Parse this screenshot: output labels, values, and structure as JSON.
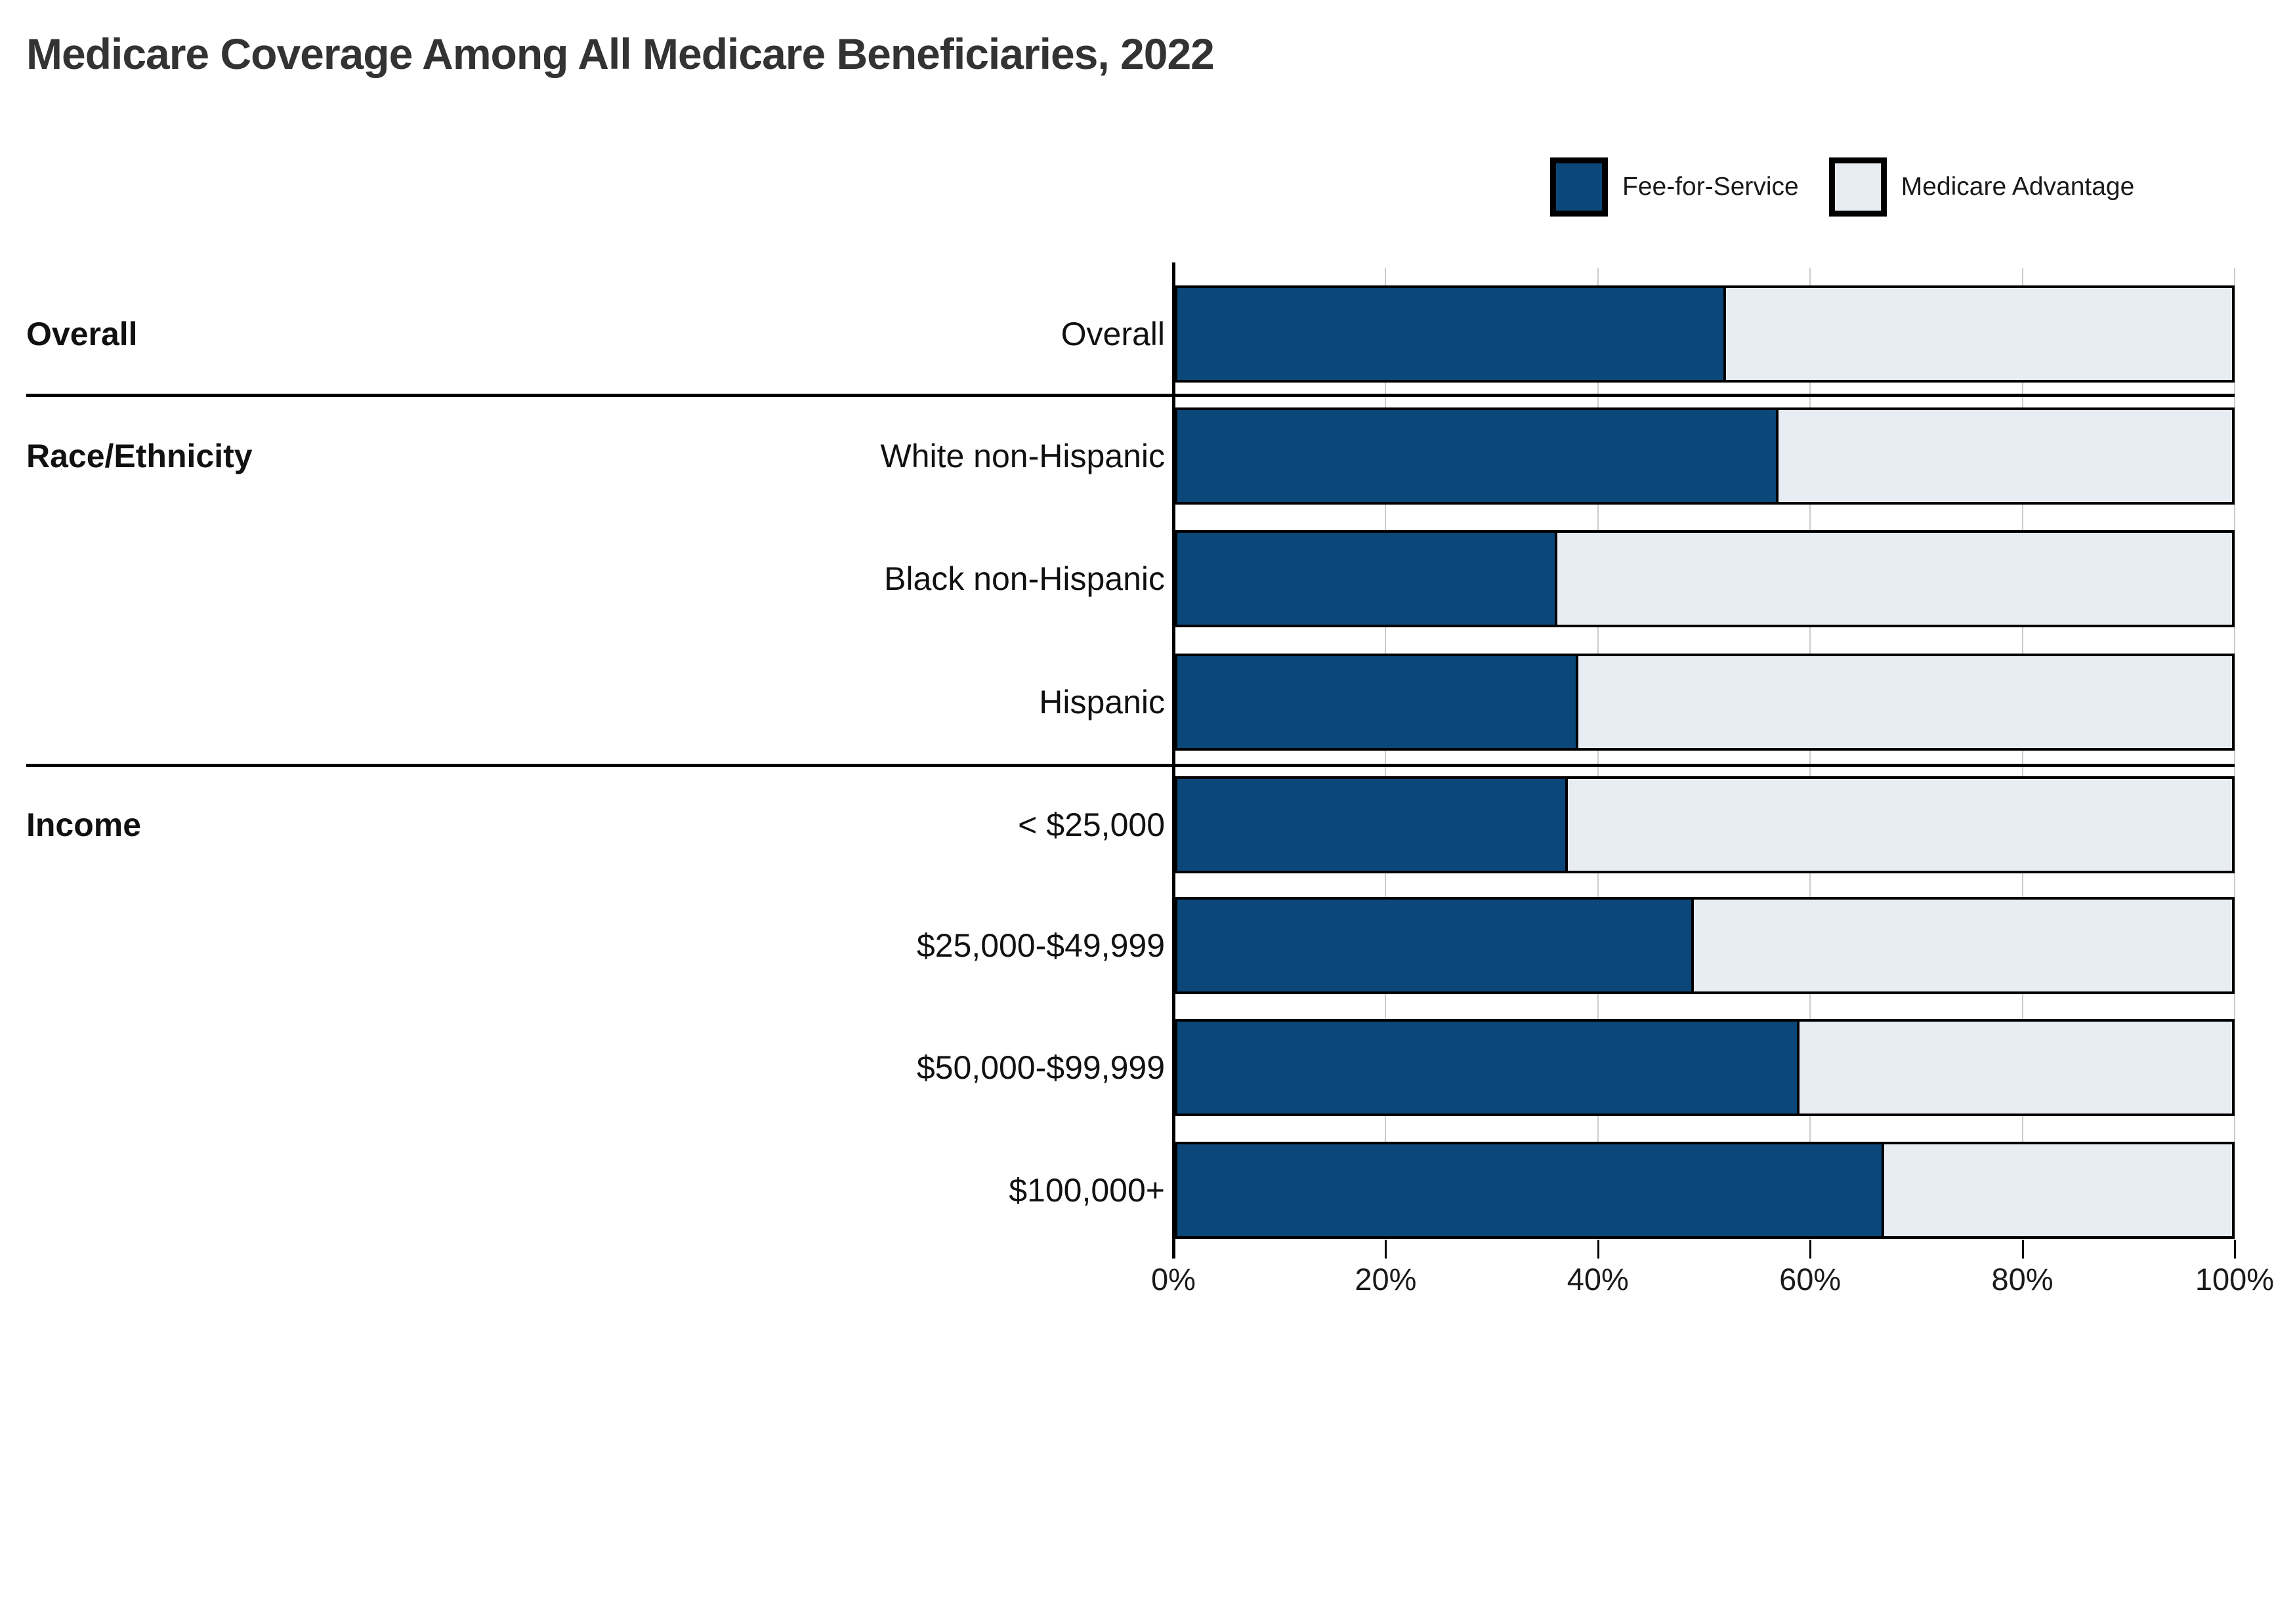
{
  "title": "Medicare Coverage Among All Medicare Beneficiaries, 2022",
  "legend": [
    {
      "label": "Fee-for-Service",
      "color": "#0b4778"
    },
    {
      "label": "Medicare Advantage",
      "color": "#e8ecf3"
    }
  ],
  "colors": {
    "fee_for_service": "#0b4778",
    "medicare_advantage": "#e8ecf3",
    "bar_border": "#000000",
    "gridline": "#cccccc",
    "title_text": "#333333"
  },
  "chart_data": {
    "type": "bar",
    "stacked": true,
    "orientation": "horizontal",
    "title": "Medicare Coverage Among All Medicare Beneficiaries, 2022",
    "xlabel": "",
    "ylabel": "",
    "xlim": [
      0,
      100
    ],
    "x_tick_labels": [
      "0%",
      "20%",
      "40%",
      "60%",
      "80%",
      "100%"
    ],
    "grid": true,
    "legend_position": "top-right",
    "categories": [
      "Overall",
      "White non-Hispanic",
      "Black non-Hispanic",
      "Hispanic",
      "< $25,000",
      "$25,000-$49,999",
      "$50,000-$99,999",
      "$100,000+"
    ],
    "series": [
      {
        "name": "Fee-for-Service",
        "values": [
          52,
          57,
          36,
          38,
          37,
          49,
          59,
          67
        ]
      },
      {
        "name": "Medicare Advantage",
        "values": [
          48,
          43,
          64,
          62,
          63,
          51,
          41,
          33
        ]
      }
    ],
    "groups": [
      {
        "label": "Overall",
        "row_indexes": [
          0
        ]
      },
      {
        "label": "Race/Ethnicity",
        "row_indexes": [
          1,
          2,
          3
        ]
      },
      {
        "label": "Income",
        "row_indexes": [
          4,
          5,
          6,
          7
        ]
      }
    ]
  }
}
